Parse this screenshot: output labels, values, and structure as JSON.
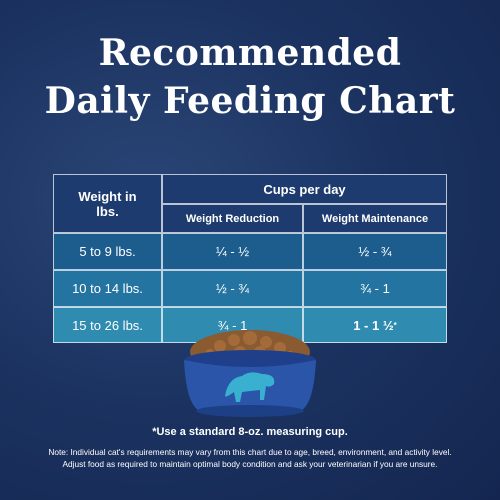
{
  "header": {
    "title_lines": [
      "Recommended",
      "Daily Feeding Chart"
    ]
  },
  "table": {
    "row_header": "Weight in lbs.",
    "group_header": "Cups per day",
    "columns": [
      "Weight Reduction",
      "Weight Maintenance"
    ],
    "rows": [
      [
        "5 to 9 lbs.",
        "¼ - ½",
        "½ - ¾"
      ],
      [
        "10 to 14 lbs.",
        "½ - ¾",
        "¾ - 1"
      ],
      [
        "15 to 26 lbs.",
        "¾ - 1",
        "1 - 1 ½"
      ]
    ],
    "footnote_marker": "*"
  },
  "footnote": "*Use a standard 8-oz. measuring cup.",
  "note_lines": [
    "Note: Individual cat's requirements may vary from this chart due to age, breed, environment, and activity level.",
    "Adjust food as required to maintain optimal body condition and ask your veterinarian if you are unsure."
  ]
}
